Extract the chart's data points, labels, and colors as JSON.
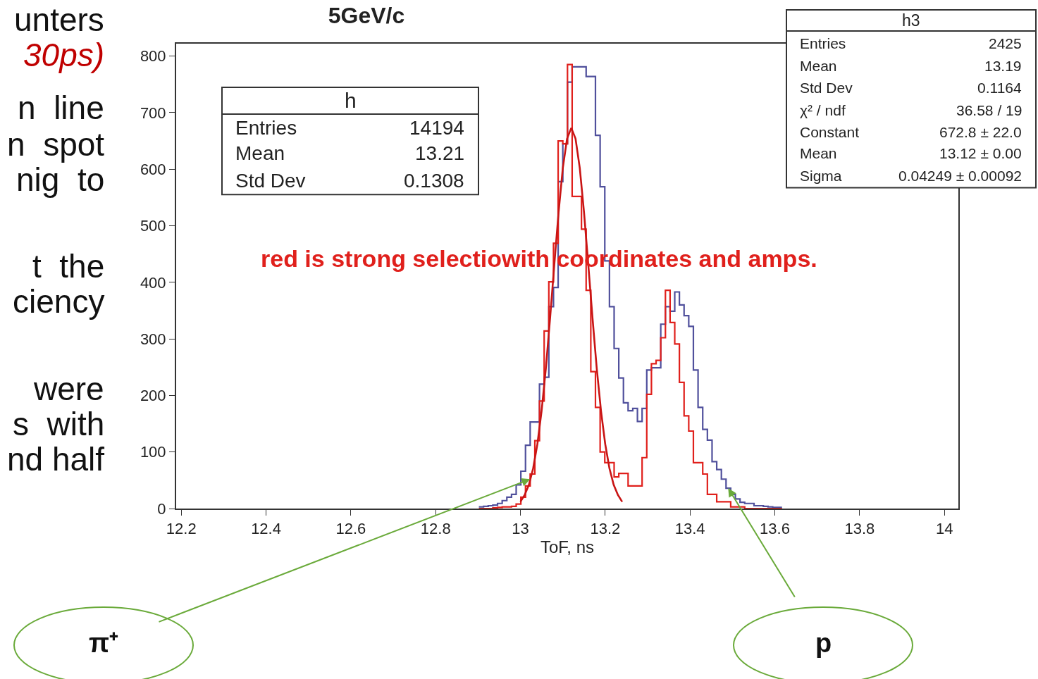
{
  "chart_data": {
    "type": "histogram",
    "title": "5GeV/c",
    "xlabel": "ToF, ns",
    "bins": [
      12.902,
      12.913,
      12.924,
      12.935,
      12.946,
      12.957,
      12.968,
      12.979,
      12.99,
      13.001,
      13.012,
      13.023,
      13.034,
      13.045,
      13.056,
      13.067,
      13.078,
      13.089,
      13.1,
      13.111,
      13.122,
      13.133,
      13.144,
      13.155,
      13.166,
      13.177,
      13.188,
      13.199,
      13.21,
      13.221,
      13.232,
      13.243,
      13.254,
      13.265,
      13.276,
      13.287,
      13.298,
      13.309,
      13.32,
      13.331,
      13.342,
      13.353,
      13.364,
      13.375,
      13.386,
      13.397,
      13.408,
      13.419,
      13.43,
      13.441,
      13.452,
      13.463,
      13.474,
      13.485,
      13.496,
      13.507,
      13.518,
      13.529,
      13.54,
      13.551,
      13.562,
      13.573,
      13.584,
      13.595,
      13.606,
      13.617
    ],
    "series": [
      {
        "color": "#50509c",
        "values": [
          3,
          4,
          5,
          6,
          9,
          14,
          20,
          25,
          42,
          66,
          112,
          153,
          153,
          220,
          232,
          357,
          391,
          578,
          645,
          754,
          781,
          781,
          781,
          764,
          764,
          660,
          569,
          438,
          357,
          283,
          231,
          187,
          173,
          177,
          154,
          177,
          245,
          249,
          249,
          326,
          357,
          349,
          383,
          360,
          341,
          322,
          245,
          179,
          140,
          121,
          83,
          69,
          52,
          36,
          25,
          17,
          11,
          9,
          9,
          5,
          5,
          4,
          3,
          2,
          2
        ]
      },
      {
        "color": "#e0201c",
        "values": [
          0,
          0,
          0,
          1,
          2,
          3,
          3,
          4,
          8,
          20,
          40,
          61,
          120,
          190,
          314,
          401,
          469,
          650,
          645,
          785,
          552,
          552,
          494,
          386,
          242,
          179,
          100,
          81,
          81,
          56,
          62,
          62,
          40,
          40,
          40,
          90,
          202,
          256,
          262,
          302,
          386,
          329,
          291,
          223,
          164,
          137,
          81,
          81,
          61,
          25,
          25,
          12,
          12,
          12,
          3,
          3,
          3,
          0,
          0,
          0,
          0,
          0,
          0,
          0,
          0
        ]
      },
      {
        "type": "line",
        "color": "#c81414",
        "x": [
          13.0,
          13.01,
          13.02,
          13.03,
          13.04,
          13.05,
          13.06,
          13.07,
          13.08,
          13.09,
          13.1,
          13.11,
          13.12,
          13.13,
          13.14,
          13.15,
          13.16,
          13.17,
          13.18,
          13.19,
          13.2,
          13.21,
          13.22,
          13.23,
          13.24
        ],
        "values": [
          12,
          24,
          42,
          71,
          114,
          173,
          248,
          337,
          432,
          524,
          602,
          654,
          673,
          654,
          602,
          524,
          432,
          337,
          248,
          173,
          114,
          71,
          42,
          24,
          12
        ]
      }
    ],
    "xlim": [
      12.188,
      14.033
    ],
    "xticks": [
      12.2,
      12.4,
      12.6,
      12.8,
      13,
      13.2,
      13.4,
      13.6,
      13.8,
      14
    ],
    "ylim": [
      0,
      822
    ],
    "yticks": [
      0,
      100,
      200,
      300,
      400,
      500,
      600,
      700,
      800
    ],
    "annotations": [
      "red is strong selectiowith coordinates and amps.",
      "h",
      "Entries\t14194",
      "Mean\t13.21",
      "Std Dev\t0.1308",
      "h3",
      "Entries\t2425",
      "Mean\t13.19",
      "Std Dev\t0.1164",
      "χ² / ndf\t36.58 / 19",
      "Constant\t672.8 ± 22.0",
      "Mean\t13.12 ± 0.00",
      "Sigma\t0.04249 ± 0.00092",
      {
        "text": "π⁺",
        "x": 13.023,
        "y": 52
      },
      {
        "text": "p",
        "x": 13.49,
        "y": 36
      },
      "unters",
      "30ps)",
      "n  line",
      "n  spot",
      "nig  to",
      "t  the",
      "ciency",
      "were",
      "s  with",
      "nd half"
    ]
  }
}
